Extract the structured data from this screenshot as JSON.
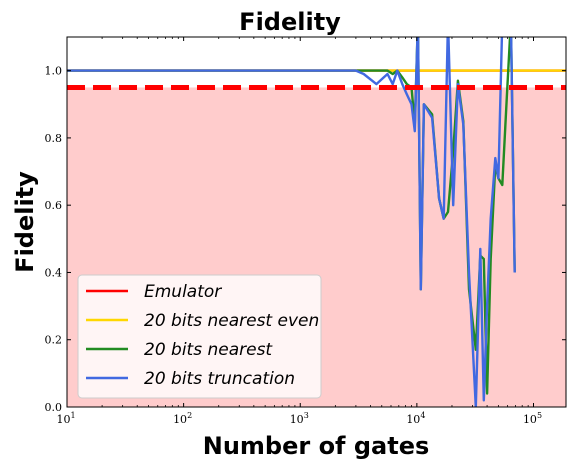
{
  "chart_data": {
    "type": "line",
    "title": "Fidelity",
    "xlabel": "Number of gates",
    "ylabel": "Fidelity",
    "xscale": "log",
    "xlim": [
      10,
      190000
    ],
    "ylim": [
      0.0,
      1.1
    ],
    "grid": false,
    "legend_position": "lower-left",
    "x_ticks": [
      {
        "value": 10,
        "base": "10",
        "exp": "1"
      },
      {
        "value": 100,
        "base": "10",
        "exp": "2"
      },
      {
        "value": 1000,
        "base": "10",
        "exp": "3"
      },
      {
        "value": 10000,
        "base": "10",
        "exp": "4"
      },
      {
        "value": 100000,
        "base": "10",
        "exp": "5"
      }
    ],
    "y_ticks": [
      "0.0",
      "0.2",
      "0.4",
      "0.6",
      "0.8",
      "1.0"
    ],
    "threshold": {
      "value": 0.95,
      "color": "#ff0000",
      "style": "dashed",
      "fill_below_color": "#ffcccc"
    },
    "series": [
      {
        "name": "Emulator",
        "color": "#ff0000",
        "x": [
          10,
          190000
        ],
        "y": [
          1.0,
          1.0
        ]
      },
      {
        "name": "20 bits nearest even",
        "color": "#ffd700",
        "x": [
          10,
          190000
        ],
        "y": [
          1.0,
          1.0
        ]
      },
      {
        "name": "20 bits nearest",
        "color": "#228b22",
        "x": [
          10,
          800,
          3000,
          3500,
          4500,
          5600,
          6200,
          6800,
          7500,
          8200,
          9000,
          9600,
          10200,
          10800,
          11500,
          13500,
          15500,
          17000,
          18500,
          20500,
          22500,
          25000,
          28000,
          32000,
          35000,
          37500,
          40000,
          43000,
          47000,
          50000,
          54000,
          59000,
          64000,
          69000
        ],
        "y": [
          1.0,
          1.0,
          1.0,
          1.0,
          1.0,
          1.0,
          0.99,
          1.0,
          0.98,
          0.96,
          0.95,
          0.84,
          1.15,
          0.35,
          0.9,
          0.87,
          0.62,
          0.56,
          0.58,
          0.76,
          0.97,
          0.85,
          0.35,
          0.17,
          0.45,
          0.44,
          0.04,
          0.44,
          0.72,
          0.68,
          0.66,
          0.92,
          1.15,
          0.4
        ]
      },
      {
        "name": "20 bits truncation",
        "color": "#4169e1",
        "x": [
          10,
          800,
          3000,
          3500,
          4500,
          5600,
          6200,
          6800,
          7500,
          8200,
          9000,
          9600,
          10200,
          10800,
          11500,
          13500,
          15500,
          17000,
          18500,
          20500,
          22500,
          25000,
          28000,
          32000,
          35000,
          37500,
          40000,
          43000,
          47000,
          50000,
          54000,
          59000,
          64000,
          69000
        ],
        "y": [
          1.0,
          1.0,
          1.0,
          0.99,
          0.96,
          0.99,
          0.96,
          1.0,
          0.96,
          0.93,
          0.9,
          0.82,
          1.15,
          0.35,
          0.9,
          0.86,
          0.62,
          0.56,
          1.15,
          0.6,
          0.96,
          0.84,
          0.4,
          0.0,
          0.47,
          0.02,
          0.3,
          0.56,
          0.74,
          0.68,
          1.15,
          1.15,
          1.15,
          0.4
        ]
      }
    ]
  }
}
